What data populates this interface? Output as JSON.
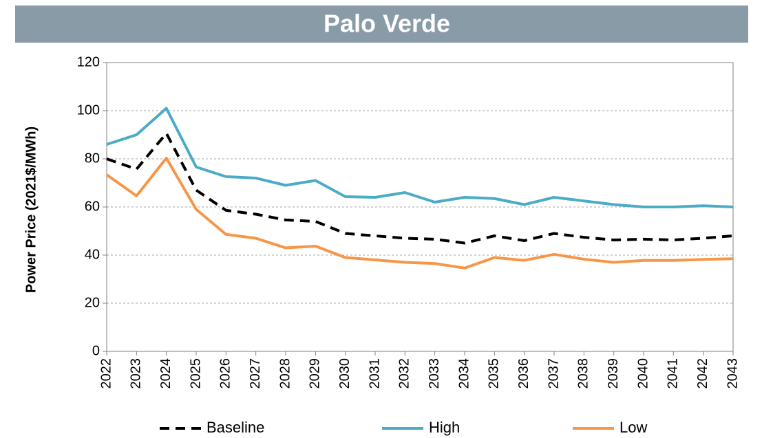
{
  "chart_data": {
    "type": "line",
    "title": "Palo Verde",
    "y_label": "Power Price (2021$/MWh)",
    "categories": [
      "2022",
      "2023",
      "2024",
      "2025",
      "2026",
      "2027",
      "2028",
      "2029",
      "2030",
      "2031",
      "2032",
      "2033",
      "2034",
      "2035",
      "2036",
      "2037",
      "2038",
      "2039",
      "2040",
      "2041",
      "2042",
      "2043"
    ],
    "series": [
      {
        "name": "Baseline",
        "color": "#000000",
        "dashed": true,
        "values": [
          80,
          75.7,
          90.6,
          67,
          58.6,
          57,
          54.6,
          54,
          49,
          48,
          47,
          46.6,
          45,
          48,
          46,
          49,
          47.4,
          46.3,
          46.6,
          46.3,
          47,
          48
        ]
      },
      {
        "name": "High",
        "color": "#4bacc6",
        "dashed": false,
        "values": [
          86,
          90,
          101,
          76.6,
          72.6,
          72,
          69,
          71,
          64.3,
          64,
          66,
          62,
          64,
          63.5,
          61,
          64,
          62.5,
          61,
          60,
          60,
          60.5,
          60
        ]
      },
      {
        "name": "Low",
        "color": "#f79646",
        "dashed": false,
        "values": [
          73.4,
          64.6,
          80.3,
          59,
          48.6,
          47,
          43,
          43.7,
          39,
          38,
          37,
          36.5,
          34.6,
          39,
          37.8,
          40.3,
          38.3,
          37,
          37.8,
          37.8,
          38.2,
          38.5
        ]
      }
    ],
    "ylim": [
      0,
      120
    ],
    "yticks": [
      0,
      20,
      40,
      60,
      80,
      100,
      120
    ],
    "grid": true,
    "legend": "bottom"
  }
}
